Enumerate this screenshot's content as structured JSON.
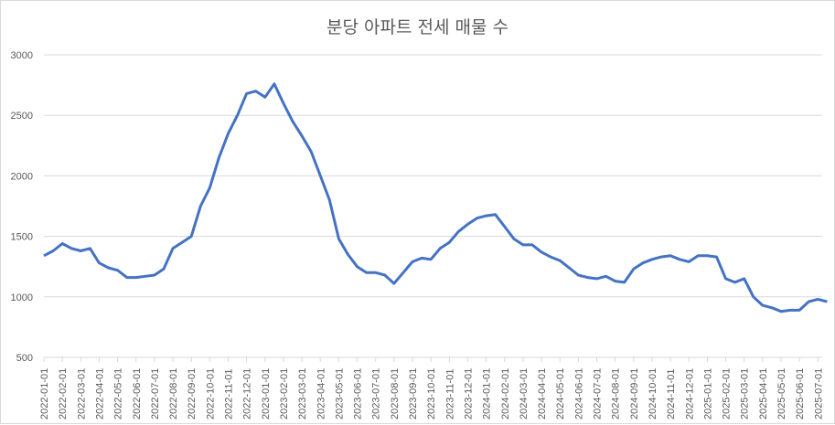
{
  "chart_data": {
    "type": "line",
    "title": "분당 아파트 전세 매물 수",
    "xlabel": "",
    "ylabel": "",
    "ylim": [
      500,
      3000
    ],
    "yticks": [
      500,
      1000,
      1500,
      2000,
      2500,
      3000
    ],
    "grid": true,
    "legend": "none",
    "color": "#4472C4",
    "xticks": [
      "2022-01-01",
      "2022-02-01",
      "2022-03-01",
      "2022-04-01",
      "2022-05-01",
      "2022-06-01",
      "2022-07-01",
      "2022-08-01",
      "2022-09-01",
      "2022-10-01",
      "2022-11-01",
      "2022-12-01",
      "2023-01-01",
      "2023-02-01",
      "2023-03-01",
      "2023-04-01",
      "2023-05-01",
      "2023-06-01",
      "2023-07-01",
      "2023-08-01",
      "2023-09-01",
      "2023-10-01",
      "2023-11-01",
      "2023-12-01",
      "2024-01-01",
      "2024-02-01",
      "2024-03-01",
      "2024-04-01",
      "2024-05-01",
      "2024-06-01",
      "2024-07-01",
      "2024-08-01",
      "2024-09-01",
      "2024-10-01",
      "2024-11-01",
      "2024-12-01",
      "2025-01-01",
      "2025-02-01",
      "2025-03-01",
      "2025-04-01",
      "2025-05-01",
      "2025-06-01",
      "2025-07-01"
    ],
    "series": [
      {
        "name": "전세 매물 수",
        "x_unit": "half-month index from 2022-01-01",
        "values": [
          1340,
          1380,
          1440,
          1400,
          1380,
          1400,
          1280,
          1240,
          1220,
          1160,
          1160,
          1170,
          1180,
          1230,
          1400,
          1450,
          1500,
          1750,
          1900,
          2150,
          2350,
          2500,
          2680,
          2700,
          2650,
          2760,
          2600,
          2450,
          2330,
          2200,
          2000,
          1800,
          1480,
          1350,
          1250,
          1200,
          1200,
          1180,
          1110,
          1200,
          1290,
          1320,
          1310,
          1400,
          1450,
          1540,
          1600,
          1650,
          1670,
          1680,
          1580,
          1480,
          1430,
          1430,
          1370,
          1330,
          1300,
          1240,
          1180,
          1160,
          1150,
          1170,
          1130,
          1120,
          1230,
          1280,
          1310,
          1330,
          1340,
          1310,
          1290,
          1340,
          1340,
          1330,
          1150,
          1120,
          1150,
          1000,
          930,
          910,
          880,
          890,
          890,
          960,
          980,
          960
        ]
      }
    ]
  }
}
